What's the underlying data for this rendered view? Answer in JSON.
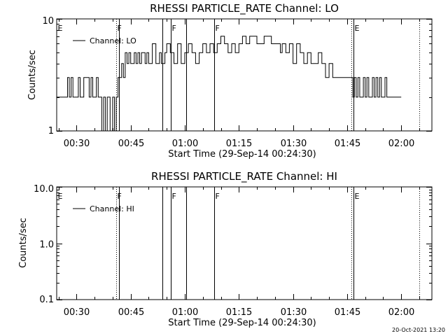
{
  "footer": {
    "timestamp": "20-Oct-2021 13:20"
  },
  "chart_data": [
    {
      "type": "line",
      "title": "RHESSI PARTICLE_RATE Channel: LO",
      "xlabel": "Start Time (29-Sep-14 00:24:30)",
      "ylabel": "Counts/sec",
      "x_range_minutes": [
        24.5,
        128.5
      ],
      "ylim": [
        1,
        10
      ],
      "yscale": "log",
      "yticks": [
        1,
        10
      ],
      "ytick_labels": [
        "1",
        "10"
      ],
      "xticks_minutes": [
        30,
        45,
        60,
        75,
        90,
        105,
        120
      ],
      "xtick_labels": [
        "00:30",
        "00:45",
        "01:00",
        "01:15",
        "01:30",
        "01:45",
        "02:00"
      ],
      "legend": {
        "position": "top-left",
        "label": "Channel: LO"
      },
      "markers": [
        {
          "t": 24.5,
          "label": "E",
          "style": "none"
        },
        {
          "t": 41.0,
          "label": "F",
          "style": "dotted"
        },
        {
          "t": 41.8,
          "label": "",
          "style": "solid"
        },
        {
          "t": 53.8,
          "label": "",
          "style": "solid"
        },
        {
          "t": 56.2,
          "label": "F",
          "style": "solid"
        },
        {
          "t": 60.4,
          "label": "",
          "style": "solid"
        },
        {
          "t": 68.2,
          "label": "F",
          "style": "solid"
        },
        {
          "t": 106.2,
          "label": "",
          "style": "dotted"
        },
        {
          "t": 106.8,
          "label": "E",
          "style": "solid"
        },
        {
          "t": 125.0,
          "label": "",
          "style": "dotted"
        }
      ],
      "series": [
        {
          "name": "Channel: LO",
          "t": [
            24.5,
            27.2,
            27.5,
            28.0,
            28.5,
            29.0,
            30.0,
            30.5,
            31.0,
            32.0,
            33.5,
            34.0,
            34.5,
            35.5,
            36.0,
            36.5,
            37.0,
            37.5,
            38.0,
            38.5,
            39.0,
            39.3,
            40.0,
            40.5,
            41.0,
            41.5,
            42.5,
            43.0,
            43.5,
            44.0,
            44.5,
            45.0,
            46.0,
            46.5,
            47.0,
            47.5,
            48.0,
            49.0,
            49.5,
            50.0,
            51.0,
            52.0,
            53.0,
            53.5,
            54.5,
            55.0,
            56.0,
            57.0,
            58.0,
            59.0,
            60.0,
            61.0,
            62.0,
            63.0,
            64.0,
            65.0,
            66.0,
            67.0,
            68.0,
            69.0,
            70.0,
            71.0,
            72.0,
            73.0,
            74.0,
            75.0,
            76.0,
            77.0,
            78.0,
            80.0,
            82.0,
            84.0,
            86.0,
            86.5,
            87.0,
            88.0,
            89.0,
            90.0,
            91.0,
            92.0,
            93.0,
            94.0,
            95.0,
            96.0,
            97.0,
            98.0,
            99.0,
            100.0,
            101.0,
            102.0,
            103.0,
            104.0,
            105.0,
            106.0,
            106.6,
            107.0,
            107.5,
            108.0,
            108.5,
            109.0,
            109.5,
            110.0,
            110.5,
            111.0,
            111.5,
            112.0,
            112.5,
            113.0,
            113.5,
            114.0,
            114.5,
            115.0,
            115.5,
            116.0,
            117.0,
            118.0,
            119.0,
            120.0
          ],
          "y": [
            2,
            2,
            3,
            2,
            3,
            2,
            2,
            3,
            2,
            3,
            2,
            3,
            2,
            3,
            2,
            2,
            1,
            2,
            1,
            2,
            2,
            1,
            2,
            1,
            2,
            3,
            4,
            3,
            5,
            4,
            5,
            4,
            5,
            4,
            5,
            4,
            5,
            4,
            5,
            4,
            6,
            4,
            5,
            4,
            5,
            6,
            5,
            4,
            6,
            4,
            5,
            6,
            5,
            4,
            5,
            6,
            5,
            6,
            5,
            6,
            7,
            6,
            5,
            6,
            5,
            6,
            7,
            6,
            7,
            6,
            7,
            6,
            6,
            5,
            6,
            5,
            6,
            4,
            6,
            5,
            4,
            5,
            4,
            4,
            5,
            4,
            3,
            4,
            3,
            3,
            3,
            3,
            3,
            3,
            2,
            3,
            2,
            3,
            2,
            2,
            3,
            2,
            3,
            2,
            2,
            3,
            2,
            3,
            2,
            3,
            2,
            2,
            3,
            2,
            2,
            2,
            2,
            2
          ]
        }
      ]
    },
    {
      "type": "line",
      "title": "RHESSI PARTICLE_RATE Channel: HI",
      "xlabel": "Start Time (29-Sep-14 00:24:30)",
      "ylabel": "Counts/sec",
      "x_range_minutes": [
        24.5,
        128.5
      ],
      "ylim": [
        0.1,
        10.0
      ],
      "yscale": "log",
      "yticks": [
        0.1,
        1.0,
        10.0
      ],
      "ytick_labels": [
        "0.1",
        "1.0",
        "10.0"
      ],
      "xticks_minutes": [
        30,
        45,
        60,
        75,
        90,
        105,
        120
      ],
      "xtick_labels": [
        "00:30",
        "00:45",
        "01:00",
        "01:15",
        "01:30",
        "01:45",
        "02:00"
      ],
      "legend": {
        "position": "top-left",
        "label": "Channel: HI"
      },
      "markers": [
        {
          "t": 24.5,
          "label": "E",
          "style": "none"
        },
        {
          "t": 41.0,
          "label": "F",
          "style": "dotted"
        },
        {
          "t": 41.8,
          "label": "",
          "style": "solid"
        },
        {
          "t": 53.8,
          "label": "",
          "style": "solid"
        },
        {
          "t": 56.2,
          "label": "F",
          "style": "solid"
        },
        {
          "t": 60.4,
          "label": "",
          "style": "solid"
        },
        {
          "t": 68.2,
          "label": "F",
          "style": "solid"
        },
        {
          "t": 106.2,
          "label": "",
          "style": "dotted"
        },
        {
          "t": 106.8,
          "label": "E",
          "style": "solid"
        },
        {
          "t": 125.0,
          "label": "",
          "style": "dotted"
        }
      ],
      "series": [
        {
          "name": "Channel: HI",
          "t": [],
          "y": []
        }
      ]
    }
  ]
}
